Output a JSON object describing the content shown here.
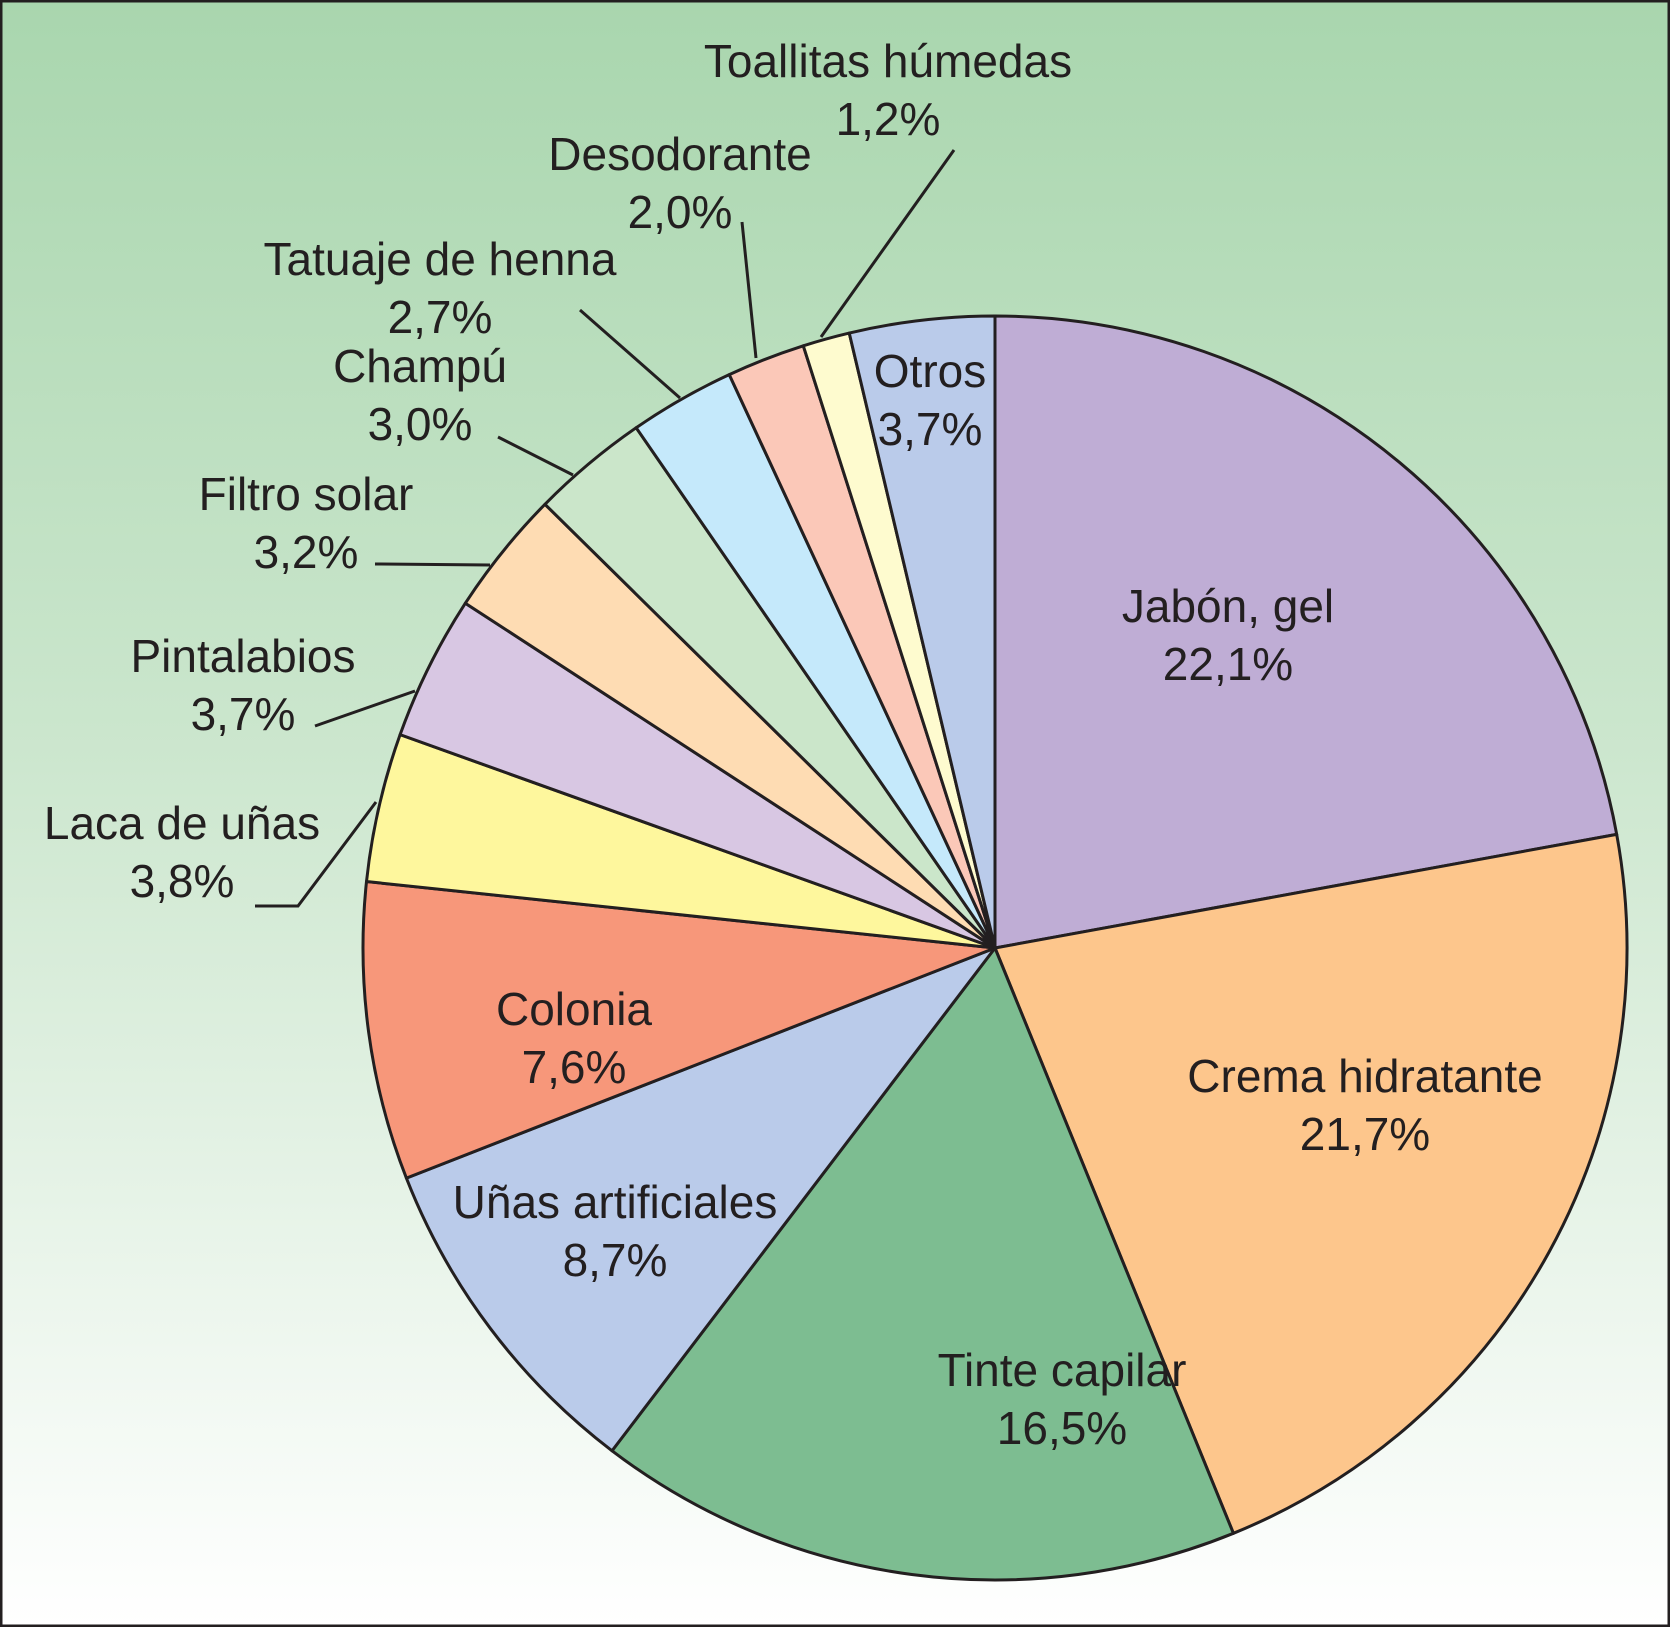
{
  "chart_data": {
    "type": "pie",
    "title": "",
    "slices": [
      {
        "label": "Jabón, gel",
        "value": 22.1,
        "value_label": "22,1%",
        "color": "#bfadd5"
      },
      {
        "label": "Crema hidratante",
        "value": 21.7,
        "value_label": "21,7%",
        "color": "#fdc68c"
      },
      {
        "label": "Tinte capilar",
        "value": 16.5,
        "value_label": "16,5%",
        "color": "#7dbd91"
      },
      {
        "label": "Uñas artificiales",
        "value": 8.7,
        "value_label": "8,7%",
        "color": "#bacbea"
      },
      {
        "label": "Colonia",
        "value": 7.6,
        "value_label": "7,6%",
        "color": "#f7977a"
      },
      {
        "label": "Laca de uñas",
        "value": 3.8,
        "value_label": "3,8%",
        "color": "#fef79d"
      },
      {
        "label": "Pintalabios",
        "value": 3.7,
        "value_label": "3,7%",
        "color": "#d8c7e3"
      },
      {
        "label": "Filtro solar",
        "value": 3.2,
        "value_label": "3,2%",
        "color": "#fedcb3"
      },
      {
        "label": "Champú",
        "value": 3.0,
        "value_label": "3,0%",
        "color": "#cbe6ca"
      },
      {
        "label": "Tatuaje de henna",
        "value": 2.7,
        "value_label": "2,7%",
        "color": "#c5e9fb"
      },
      {
        "label": "Desodorante",
        "value": 2.0,
        "value_label": "2,0%",
        "color": "#fbc8b8"
      },
      {
        "label": "Toallitas húmedas",
        "value": 1.2,
        "value_label": "1,2%",
        "color": "#fefbcf"
      },
      {
        "label": "Otros",
        "value": 3.7,
        "value_label": "3,7%",
        "color": "#bacbea"
      }
    ],
    "start": "12 o'clock",
    "direction": "clockwise",
    "background": {
      "top": "#a9d6ae",
      "bottom": "#ffffff"
    },
    "border_color": "#231f20"
  }
}
